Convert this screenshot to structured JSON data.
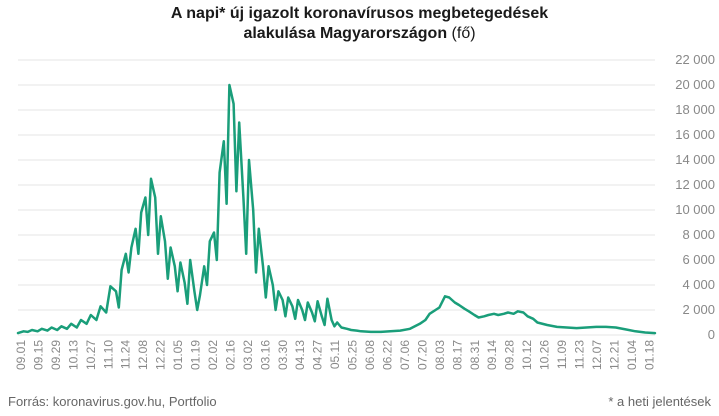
{
  "title": {
    "line1": "A napi* új igazolt koronavírusos megbetegedések",
    "line2": "alakulása Magyarországon",
    "unit": "(fő)"
  },
  "footer": {
    "source": "Forrás: koronavirus.gov.hu, Portfolio",
    "note": "* a heti jelentések"
  },
  "colors": {
    "line": "#1a9e7a",
    "grid": "#e4e4e4",
    "tick_text": "#888888"
  },
  "chart_data": {
    "type": "line",
    "title": "A napi* új igazolt koronavírusos megbetegedések alakulása Magyarországon (fő)",
    "xlabel": "",
    "ylabel": "",
    "ylim": [
      0,
      22000
    ],
    "yticks": [
      0,
      2000,
      4000,
      6000,
      8000,
      10000,
      12000,
      14000,
      16000,
      18000,
      20000,
      22000
    ],
    "ytick_labels": [
      "0",
      "2 000",
      "4 000",
      "6 000",
      "8 000",
      "10 000",
      "12 000",
      "14 000",
      "16 000",
      "18 000",
      "20 000",
      "22 000"
    ],
    "y_axis_side": "right",
    "grid": "horizontal",
    "xtick_labels": [
      "09.01",
      "09.15",
      "09.29",
      "10.13",
      "10.27",
      "11.10",
      "11.24",
      "12.08",
      "12.22",
      "01.05",
      "01.19",
      "02.02",
      "02.16",
      "03.02",
      "03.16",
      "03.30",
      "04.13",
      "04.27",
      "05.11",
      "05.25",
      "06.08",
      "06.22",
      "07.06",
      "07.20",
      "08.03",
      "08.17",
      "08.31",
      "09.14",
      "09.28",
      "10.12",
      "10.26",
      "11.09",
      "11.23",
      "12.07",
      "12.21",
      "01.04",
      "01.18"
    ],
    "series": [
      {
        "values": [
          [
            0,
            150
          ],
          [
            4,
            300
          ],
          [
            7,
            250
          ],
          [
            10,
            400
          ],
          [
            14,
            300
          ],
          [
            17,
            500
          ],
          [
            21,
            350
          ],
          [
            24,
            600
          ],
          [
            28,
            400
          ],
          [
            31,
            700
          ],
          [
            35,
            500
          ],
          [
            38,
            900
          ],
          [
            42,
            600
          ],
          [
            45,
            1200
          ],
          [
            49,
            900
          ],
          [
            52,
            1600
          ],
          [
            56,
            1200
          ],
          [
            59,
            2300
          ],
          [
            63,
            1800
          ],
          [
            66,
            3900
          ],
          [
            70,
            3500
          ],
          [
            72,
            2200
          ],
          [
            74,
            5200
          ],
          [
            77,
            6500
          ],
          [
            79,
            5000
          ],
          [
            81,
            7000
          ],
          [
            84,
            8500
          ],
          [
            86,
            6500
          ],
          [
            88,
            9800
          ],
          [
            91,
            11000
          ],
          [
            93,
            8000
          ],
          [
            95,
            12500
          ],
          [
            98,
            11000
          ],
          [
            100,
            6500
          ],
          [
            102,
            9500
          ],
          [
            105,
            7500
          ],
          [
            107,
            4500
          ],
          [
            109,
            7000
          ],
          [
            112,
            5500
          ],
          [
            114,
            3500
          ],
          [
            116,
            5800
          ],
          [
            119,
            4200
          ],
          [
            121,
            2500
          ],
          [
            123,
            6000
          ],
          [
            126,
            3500
          ],
          [
            128,
            2000
          ],
          [
            130,
            3200
          ],
          [
            133,
            5500
          ],
          [
            135,
            4000
          ],
          [
            137,
            7500
          ],
          [
            140,
            8200
          ],
          [
            142,
            6000
          ],
          [
            144,
            13000
          ],
          [
            147,
            15500
          ],
          [
            149,
            10500
          ],
          [
            151,
            20000
          ],
          [
            154,
            18500
          ],
          [
            156,
            11500
          ],
          [
            158,
            17000
          ],
          [
            161,
            11000
          ],
          [
            163,
            6500
          ],
          [
            165,
            14000
          ],
          [
            168,
            10000
          ],
          [
            170,
            5000
          ],
          [
            172,
            8500
          ],
          [
            175,
            5500
          ],
          [
            177,
            3000
          ],
          [
            179,
            5500
          ],
          [
            182,
            4000
          ],
          [
            184,
            2000
          ],
          [
            186,
            3500
          ],
          [
            189,
            2800
          ],
          [
            191,
            1500
          ],
          [
            193,
            3000
          ],
          [
            196,
            2300
          ],
          [
            198,
            1300
          ],
          [
            200,
            2800
          ],
          [
            203,
            2000
          ],
          [
            205,
            1200
          ],
          [
            207,
            2600
          ],
          [
            210,
            1800
          ],
          [
            212,
            1100
          ],
          [
            214,
            2700
          ],
          [
            217,
            1500
          ],
          [
            219,
            800
          ],
          [
            221,
            2900
          ],
          [
            224,
            1200
          ],
          [
            226,
            700
          ],
          [
            228,
            1000
          ],
          [
            231,
            600
          ],
          [
            235,
            500
          ],
          [
            238,
            400
          ],
          [
            242,
            350
          ],
          [
            245,
            300
          ],
          [
            252,
            250
          ],
          [
            259,
            250
          ],
          [
            266,
            300
          ],
          [
            273,
            350
          ],
          [
            280,
            500
          ],
          [
            287,
            900
          ],
          [
            291,
            1200
          ],
          [
            294,
            1700
          ],
          [
            301,
            2200
          ],
          [
            305,
            3100
          ],
          [
            308,
            3000
          ],
          [
            312,
            2600
          ],
          [
            315,
            2400
          ],
          [
            319,
            2100
          ],
          [
            322,
            1900
          ],
          [
            326,
            1600
          ],
          [
            329,
            1400
          ],
          [
            333,
            1500
          ],
          [
            336,
            1600
          ],
          [
            340,
            1700
          ],
          [
            343,
            1600
          ],
          [
            347,
            1700
          ],
          [
            350,
            1800
          ],
          [
            354,
            1700
          ],
          [
            357,
            1900
          ],
          [
            361,
            1800
          ],
          [
            364,
            1500
          ],
          [
            368,
            1300
          ],
          [
            371,
            1000
          ],
          [
            378,
            800
          ],
          [
            385,
            650
          ],
          [
            392,
            600
          ],
          [
            399,
            550
          ],
          [
            406,
            600
          ],
          [
            413,
            650
          ],
          [
            420,
            650
          ],
          [
            427,
            600
          ],
          [
            434,
            450
          ],
          [
            441,
            300
          ],
          [
            448,
            200
          ],
          [
            455,
            150
          ]
        ]
      }
    ]
  }
}
